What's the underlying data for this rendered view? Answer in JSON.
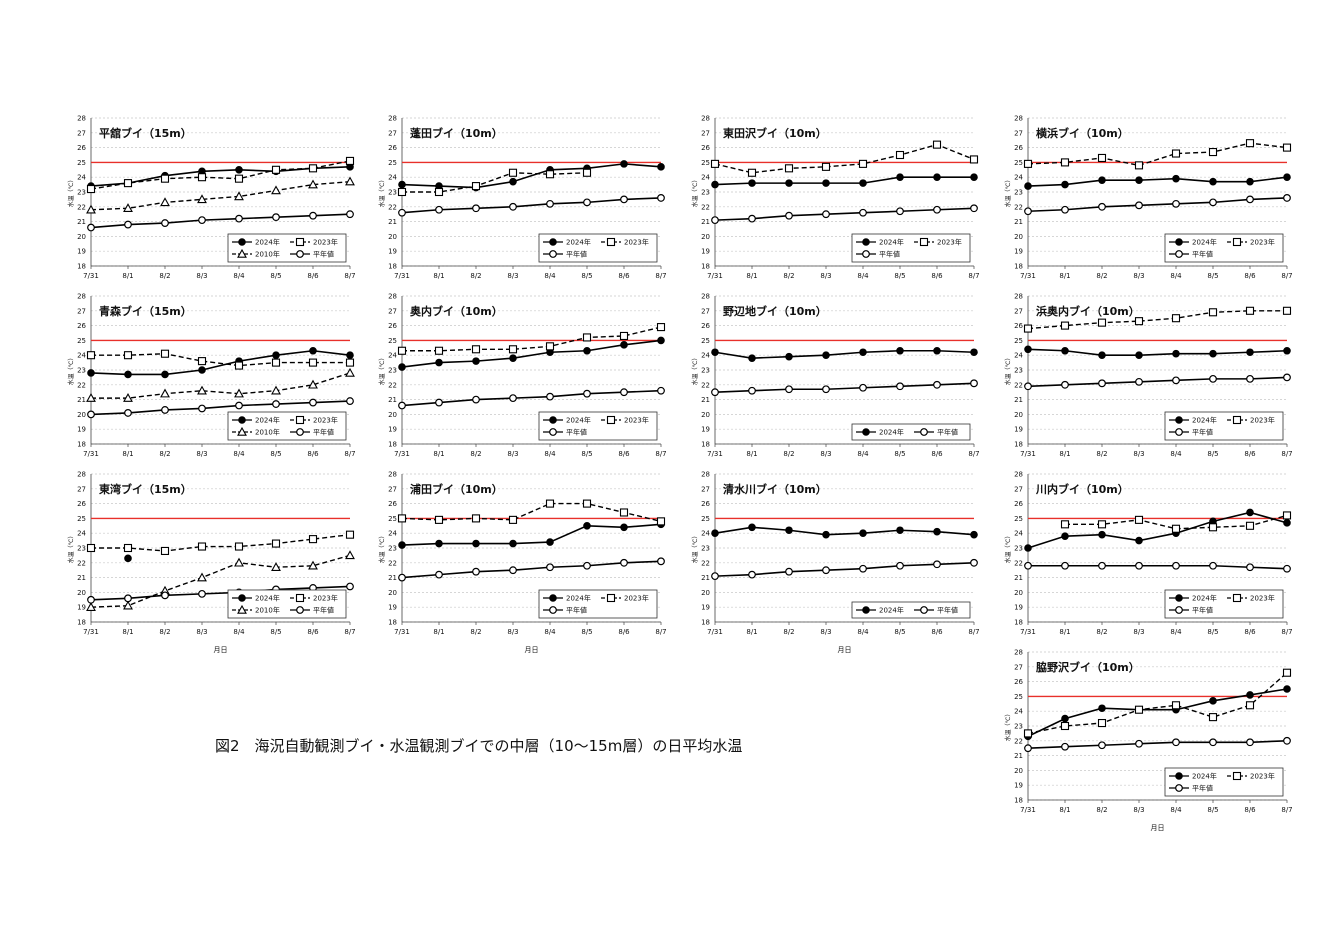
{
  "caption": "図2　海況自動観測ブイ・水温観測ブイでの中層（10～15m層）の日平均水温",
  "x_axis_label": "月日",
  "y_axis_label": "水温（℃）",
  "chart_data": [
    {
      "type": "line",
      "title": "平舘ブイ（15m）",
      "categories": [
        "7/31",
        "8/1",
        "8/2",
        "8/3",
        "8/4",
        "8/5",
        "8/6",
        "8/7"
      ],
      "ylim": [
        18,
        28
      ],
      "yticks": [
        18,
        19,
        20,
        21,
        22,
        23,
        24,
        25,
        26,
        27,
        28
      ],
      "reference_line": 25,
      "legend": "bottom-right",
      "series": [
        {
          "name": "2024年",
          "style": "solid-filled",
          "values": [
            23.4,
            23.6,
            24.1,
            24.4,
            24.5,
            24.4,
            24.6,
            24.7
          ]
        },
        {
          "name": "2023年",
          "style": "dash-square",
          "values": [
            23.2,
            23.6,
            23.9,
            24.0,
            23.9,
            24.5,
            24.6,
            25.1
          ]
        },
        {
          "name": "2010年",
          "style": "dash-triangle",
          "values": [
            21.8,
            21.9,
            22.3,
            22.5,
            22.7,
            23.1,
            23.5,
            23.7
          ]
        },
        {
          "name": "平年値",
          "style": "solid-open",
          "values": [
            20.6,
            20.8,
            20.9,
            21.1,
            21.2,
            21.3,
            21.4,
            21.5
          ]
        }
      ]
    },
    {
      "type": "line",
      "title": "蓬田ブイ（10m）",
      "categories": [
        "7/31",
        "8/1",
        "8/2",
        "8/3",
        "8/4",
        "8/5",
        "8/6",
        "8/7"
      ],
      "ylim": [
        18,
        28
      ],
      "yticks": [
        18,
        19,
        20,
        21,
        22,
        23,
        24,
        25,
        26,
        27,
        28
      ],
      "reference_line": 25,
      "legend": "bottom-right",
      "series": [
        {
          "name": "2024年",
          "style": "solid-filled",
          "values": [
            23.5,
            23.4,
            23.3,
            23.7,
            24.5,
            24.6,
            24.9,
            24.7
          ]
        },
        {
          "name": "2023年",
          "style": "dash-square",
          "values": [
            23.0,
            23.0,
            23.4,
            24.3,
            24.2,
            24.3,
            null,
            null
          ]
        },
        {
          "name": "平年値",
          "style": "solid-open",
          "values": [
            21.6,
            21.8,
            21.9,
            22.0,
            22.2,
            22.3,
            22.5,
            22.6
          ]
        }
      ]
    },
    {
      "type": "line",
      "title": "東田沢ブイ（10m）",
      "categories": [
        "7/31",
        "8/1",
        "8/2",
        "8/3",
        "8/4",
        "8/5",
        "8/6",
        "8/7"
      ],
      "ylim": [
        18,
        28
      ],
      "yticks": [
        18,
        19,
        20,
        21,
        22,
        23,
        24,
        25,
        26,
        27,
        28
      ],
      "reference_line": 25,
      "legend": "bottom-right",
      "series": [
        {
          "name": "2024年",
          "style": "solid-filled",
          "values": [
            23.5,
            23.6,
            23.6,
            23.6,
            23.6,
            24.0,
            24.0,
            24.0
          ]
        },
        {
          "name": "2023年",
          "style": "dash-square",
          "values": [
            24.9,
            24.3,
            24.6,
            24.7,
            24.9,
            25.5,
            26.2,
            25.2
          ]
        },
        {
          "name": "平年値",
          "style": "solid-open",
          "values": [
            21.1,
            21.2,
            21.4,
            21.5,
            21.6,
            21.7,
            21.8,
            21.9
          ]
        }
      ]
    },
    {
      "type": "line",
      "title": "横浜ブイ（10m）",
      "categories": [
        "7/31",
        "8/1",
        "8/2",
        "8/3",
        "8/4",
        "8/5",
        "8/6",
        "8/7"
      ],
      "ylim": [
        18,
        28
      ],
      "yticks": [
        18,
        19,
        20,
        21,
        22,
        23,
        24,
        25,
        26,
        27,
        28
      ],
      "reference_line": 25,
      "legend": "bottom-right",
      "series": [
        {
          "name": "2024年",
          "style": "solid-filled",
          "values": [
            23.4,
            23.5,
            23.8,
            23.8,
            23.9,
            23.7,
            23.7,
            24.0
          ]
        },
        {
          "name": "2023年",
          "style": "dash-square",
          "values": [
            24.9,
            25.0,
            25.3,
            24.8,
            25.6,
            25.7,
            26.3,
            26.0
          ]
        },
        {
          "name": "平年値",
          "style": "solid-open",
          "values": [
            21.7,
            21.8,
            22.0,
            22.1,
            22.2,
            22.3,
            22.5,
            22.6
          ]
        }
      ]
    },
    {
      "type": "line",
      "title": "青森ブイ（15m）",
      "categories": [
        "7/31",
        "8/1",
        "8/2",
        "8/3",
        "8/4",
        "8/5",
        "8/6",
        "8/7"
      ],
      "ylim": [
        18,
        28
      ],
      "yticks": [
        18,
        19,
        20,
        21,
        22,
        23,
        24,
        25,
        26,
        27,
        28
      ],
      "reference_line": 25,
      "legend": "bottom-right",
      "series": [
        {
          "name": "2024年",
          "style": "solid-filled",
          "values": [
            22.8,
            22.7,
            22.7,
            23.0,
            23.6,
            24.0,
            24.3,
            24.0
          ]
        },
        {
          "name": "2023年",
          "style": "dash-square",
          "values": [
            24.0,
            24.0,
            24.1,
            23.6,
            23.3,
            23.5,
            23.5,
            23.5
          ]
        },
        {
          "name": "2010年",
          "style": "dash-triangle",
          "values": [
            21.1,
            21.1,
            21.4,
            21.6,
            21.4,
            21.6,
            22.0,
            22.8
          ]
        },
        {
          "name": "平年値",
          "style": "solid-open",
          "values": [
            20.0,
            20.1,
            20.3,
            20.4,
            20.6,
            20.7,
            20.8,
            20.9
          ]
        }
      ]
    },
    {
      "type": "line",
      "title": "奥内ブイ（10m）",
      "categories": [
        "7/31",
        "8/1",
        "8/2",
        "8/3",
        "8/4",
        "8/5",
        "8/6",
        "8/7"
      ],
      "ylim": [
        18,
        28
      ],
      "yticks": [
        18,
        19,
        20,
        21,
        22,
        23,
        24,
        25,
        26,
        27,
        28
      ],
      "reference_line": 25,
      "legend": "bottom-right",
      "series": [
        {
          "name": "2024年",
          "style": "solid-filled",
          "values": [
            23.2,
            23.5,
            23.6,
            23.8,
            24.2,
            24.3,
            24.7,
            25.0
          ]
        },
        {
          "name": "2023年",
          "style": "dash-square",
          "values": [
            24.3,
            24.3,
            24.4,
            24.4,
            24.6,
            25.2,
            25.3,
            25.9
          ]
        },
        {
          "name": "平年値",
          "style": "solid-open",
          "values": [
            20.6,
            20.8,
            21.0,
            21.1,
            21.2,
            21.4,
            21.5,
            21.6
          ]
        }
      ]
    },
    {
      "type": "line",
      "title": "野辺地ブイ（10m）",
      "categories": [
        "7/31",
        "8/1",
        "8/2",
        "8/3",
        "8/4",
        "8/5",
        "8/6",
        "8/7"
      ],
      "ylim": [
        18,
        28
      ],
      "yticks": [
        18,
        19,
        20,
        21,
        22,
        23,
        24,
        25,
        26,
        27,
        28
      ],
      "reference_line": 25,
      "legend": "bottom-right",
      "series": [
        {
          "name": "2024年",
          "style": "solid-filled",
          "values": [
            24.2,
            23.8,
            23.9,
            24.0,
            24.2,
            24.3,
            24.3,
            24.2
          ]
        },
        {
          "name": "平年値",
          "style": "solid-open",
          "values": [
            21.5,
            21.6,
            21.7,
            21.7,
            21.8,
            21.9,
            22.0,
            22.1
          ]
        }
      ]
    },
    {
      "type": "line",
      "title": "浜奥内ブイ（10m）",
      "categories": [
        "7/31",
        "8/1",
        "8/2",
        "8/3",
        "8/4",
        "8/5",
        "8/6",
        "8/7"
      ],
      "ylim": [
        18,
        28
      ],
      "yticks": [
        18,
        19,
        20,
        21,
        22,
        23,
        24,
        25,
        26,
        27,
        28
      ],
      "reference_line": 25,
      "legend": "bottom-right",
      "series": [
        {
          "name": "2024年",
          "style": "solid-filled",
          "values": [
            24.4,
            24.3,
            24.0,
            24.0,
            24.1,
            24.1,
            24.2,
            24.3
          ]
        },
        {
          "name": "2023年",
          "style": "dash-square",
          "values": [
            25.8,
            26.0,
            26.2,
            26.3,
            26.5,
            26.9,
            27.0,
            27.0
          ]
        },
        {
          "name": "平年値",
          "style": "solid-open",
          "values": [
            21.9,
            22.0,
            22.1,
            22.2,
            22.3,
            22.4,
            22.4,
            22.5
          ]
        }
      ]
    },
    {
      "type": "line",
      "title": "東湾ブイ（15m）",
      "categories": [
        "7/31",
        "8/1",
        "8/2",
        "8/3",
        "8/4",
        "8/5",
        "8/6",
        "8/7"
      ],
      "ylim": [
        18,
        28
      ],
      "yticks": [
        18,
        19,
        20,
        21,
        22,
        23,
        24,
        25,
        26,
        27,
        28
      ],
      "reference_line": 25,
      "legend": "bottom-right",
      "series": [
        {
          "name": "2024年",
          "style": "solid-filled",
          "values": [
            null,
            22.3,
            null,
            null,
            null,
            null,
            null,
            null
          ]
        },
        {
          "name": "2023年",
          "style": "dash-square",
          "values": [
            23.0,
            23.0,
            22.8,
            23.1,
            23.1,
            23.3,
            23.6,
            23.9
          ]
        },
        {
          "name": "2010年",
          "style": "dash-triangle",
          "values": [
            19.0,
            19.1,
            20.1,
            21.0,
            22.0,
            21.7,
            21.8,
            22.5
          ]
        },
        {
          "name": "平年値",
          "style": "solid-open",
          "values": [
            19.5,
            19.6,
            19.8,
            19.9,
            20.0,
            20.2,
            20.3,
            20.4
          ]
        }
      ]
    },
    {
      "type": "line",
      "title": "浦田ブイ（10m）",
      "categories": [
        "7/31",
        "8/1",
        "8/2",
        "8/3",
        "8/4",
        "8/5",
        "8/6",
        "8/7"
      ],
      "ylim": [
        18,
        28
      ],
      "yticks": [
        18,
        19,
        20,
        21,
        22,
        23,
        24,
        25,
        26,
        27,
        28
      ],
      "reference_line": 25,
      "legend": "bottom-right",
      "series": [
        {
          "name": "2024年",
          "style": "solid-filled",
          "values": [
            23.2,
            23.3,
            23.3,
            23.3,
            23.4,
            24.5,
            24.4,
            24.6
          ]
        },
        {
          "name": "2023年",
          "style": "dash-square",
          "values": [
            25.0,
            24.9,
            25.0,
            24.9,
            26.0,
            26.0,
            25.4,
            24.8
          ]
        },
        {
          "name": "平年値",
          "style": "solid-open",
          "values": [
            21.0,
            21.2,
            21.4,
            21.5,
            21.7,
            21.8,
            22.0,
            22.1
          ]
        }
      ]
    },
    {
      "type": "line",
      "title": "清水川ブイ（10m）",
      "categories": [
        "7/31",
        "8/1",
        "8/2",
        "8/3",
        "8/4",
        "8/5",
        "8/6",
        "8/7"
      ],
      "ylim": [
        18,
        28
      ],
      "yticks": [
        18,
        19,
        20,
        21,
        22,
        23,
        24,
        25,
        26,
        27,
        28
      ],
      "reference_line": 25,
      "legend": "bottom-right",
      "series": [
        {
          "name": "2024年",
          "style": "solid-filled",
          "values": [
            24.0,
            24.4,
            24.2,
            23.9,
            24.0,
            24.2,
            24.1,
            23.9
          ]
        },
        {
          "name": "平年値",
          "style": "solid-open",
          "values": [
            21.1,
            21.2,
            21.4,
            21.5,
            21.6,
            21.8,
            21.9,
            22.0
          ]
        }
      ]
    },
    {
      "type": "line",
      "title": "川内ブイ（10m）",
      "categories": [
        "7/31",
        "8/1",
        "8/2",
        "8/3",
        "8/4",
        "8/5",
        "8/6",
        "8/7"
      ],
      "ylim": [
        18,
        28
      ],
      "yticks": [
        18,
        19,
        20,
        21,
        22,
        23,
        24,
        25,
        26,
        27,
        28
      ],
      "reference_line": 25,
      "legend": "bottom-right",
      "series": [
        {
          "name": "2024年",
          "style": "solid-filled",
          "values": [
            23.0,
            23.8,
            23.9,
            23.5,
            24.0,
            24.8,
            25.4,
            24.7
          ]
        },
        {
          "name": "2023年",
          "style": "dash-square",
          "values": [
            null,
            24.6,
            24.6,
            24.9,
            24.3,
            24.4,
            24.5,
            25.2
          ]
        },
        {
          "name": "平年値",
          "style": "solid-open",
          "values": [
            21.8,
            21.8,
            21.8,
            21.8,
            21.8,
            21.8,
            21.7,
            21.6
          ]
        }
      ]
    },
    {
      "type": "line",
      "title": "脇野沢ブイ（10m）",
      "categories": [
        "7/31",
        "8/1",
        "8/2",
        "8/3",
        "8/4",
        "8/5",
        "8/6",
        "8/7"
      ],
      "ylim": [
        18,
        28
      ],
      "yticks": [
        18,
        19,
        20,
        21,
        22,
        23,
        24,
        25,
        26,
        27,
        28
      ],
      "reference_line": 25,
      "legend": "bottom-right",
      "series": [
        {
          "name": "2024年",
          "style": "solid-filled",
          "values": [
            22.3,
            23.5,
            24.2,
            24.1,
            24.1,
            24.7,
            25.1,
            25.5
          ]
        },
        {
          "name": "2023年",
          "style": "dash-square",
          "values": [
            22.5,
            23.0,
            23.2,
            24.1,
            24.4,
            23.6,
            24.4,
            26.6
          ]
        },
        {
          "name": "平年値",
          "style": "solid-open",
          "values": [
            21.5,
            21.6,
            21.7,
            21.8,
            21.9,
            21.9,
            21.9,
            22.0
          ]
        }
      ]
    }
  ],
  "colors": {
    "reference_line": "#e8302a",
    "series": "#000000",
    "grid": "#c8c8c8"
  }
}
